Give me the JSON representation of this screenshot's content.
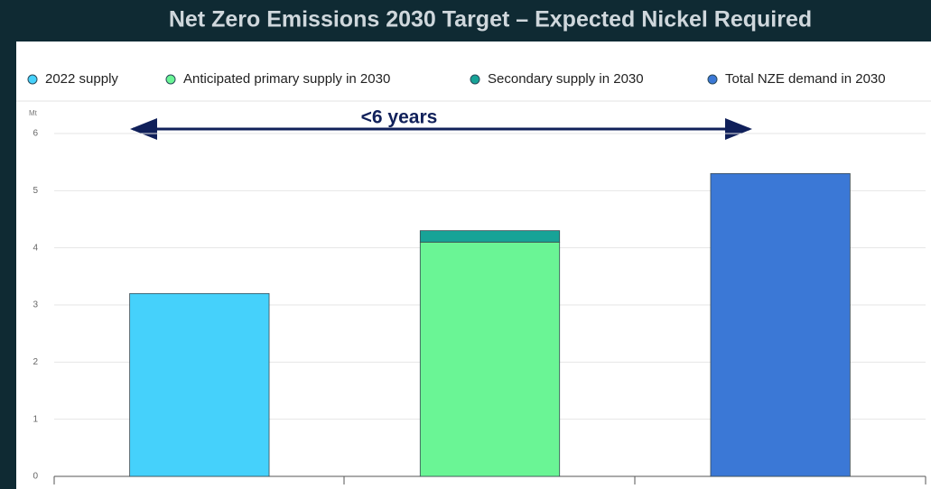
{
  "chart_data": {
    "type": "bar",
    "stacked": true,
    "title": "Net Zero Emissions 2030 Target – Expected Nickel Required",
    "y_label": "Mt",
    "annotation": "<6 years",
    "categories": [
      null,
      null,
      null
    ],
    "series": [
      {
        "name": "2022 supply",
        "color": "#45d1fb",
        "values": [
          3.2,
          null,
          null
        ]
      },
      {
        "name": "Anticipated primary supply in 2030",
        "color": "#6af595",
        "values": [
          null,
          4.1,
          null
        ]
      },
      {
        "name": "Secondary supply in 2030",
        "color": "#17a397",
        "values": [
          null,
          0.2,
          null
        ]
      },
      {
        "name": "Total NZE demand in 2030",
        "color": "#3b78d6",
        "values": [
          null,
          null,
          5.3
        ]
      }
    ],
    "ylim": [
      0,
      6
    ],
    "yticks": [
      0,
      1,
      2,
      3,
      4,
      5,
      6
    ],
    "grid": true,
    "legend": "top"
  }
}
